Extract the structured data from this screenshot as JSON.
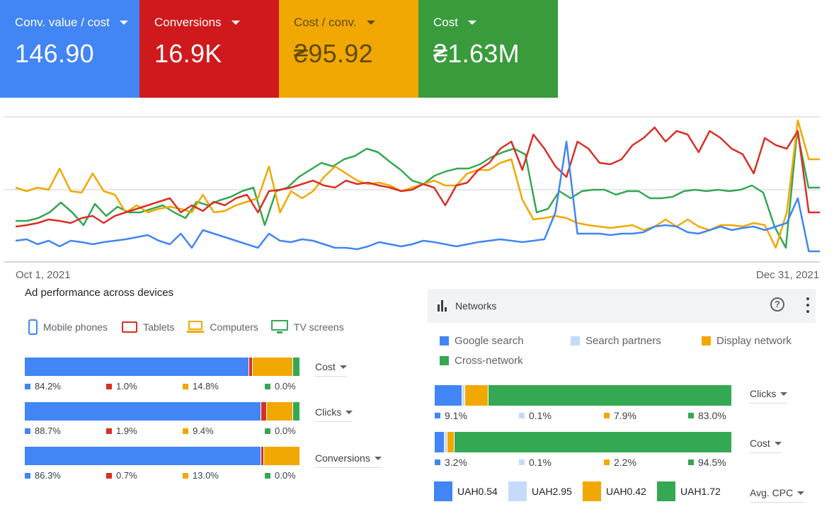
{
  "kpis": [
    {
      "label": "Conv. value / cost",
      "value": "146.90"
    },
    {
      "label": "Conversions",
      "value": "16.9K"
    },
    {
      "label": "Cost / conv.",
      "value": "₴95.92"
    },
    {
      "label": "Cost",
      "value": "₴1.63M"
    }
  ],
  "colors": {
    "blue": "#4285f4",
    "red": "#d93025",
    "yellow": "#f2a802",
    "green": "#34a853",
    "light_blue": "#c6dafc"
  },
  "chart_data": {
    "type": "line",
    "x_start": "Oct 1, 2021",
    "x_end": "Dec 31, 2021",
    "grid": true,
    "series": [
      {
        "key": "blue",
        "values": [
          340,
          338,
          345,
          340,
          348,
          340,
          342,
          345,
          342,
          340,
          338,
          335,
          332,
          340,
          345,
          330,
          350,
          325,
          330,
          335,
          340,
          345,
          350,
          330,
          340,
          342,
          338,
          340,
          345,
          350,
          350,
          352,
          348,
          342,
          345,
          348,
          345,
          340,
          342,
          345,
          348,
          345,
          342,
          340,
          338,
          340,
          342,
          340,
          338,
          300,
          200,
          330,
          330,
          330,
          332,
          330,
          330,
          328,
          320,
          318,
          320,
          328,
          330,
          325,
          320,
          325,
          322,
          320,
          325,
          320,
          315,
          280,
          355,
          355
        ]
      },
      {
        "key": "red",
        "values": [
          320,
          318,
          315,
          310,
          312,
          315,
          308,
          305,
          315,
          305,
          300,
          295,
          290,
          285,
          280,
          300,
          290,
          298,
          285,
          290,
          280,
          275,
          300,
          270,
          268,
          265,
          260,
          255,
          262,
          265,
          255,
          260,
          258,
          262,
          265,
          270,
          268,
          260,
          265,
          290,
          262,
          258,
          240,
          230,
          210,
          200,
          240,
          190,
          210,
          235,
          250,
          200,
          210,
          230,
          232,
          225,
          205,
          195,
          180,
          200,
          185,
          190,
          215,
          185,
          195,
          210,
          218,
          245,
          195,
          205,
          210,
          185,
          300,
          300
        ]
      },
      {
        "key": "yellow",
        "values": [
          265,
          270,
          265,
          268,
          238,
          270,
          272,
          245,
          270,
          275,
          300,
          290,
          300,
          295,
          292,
          295,
          300,
          275,
          300,
          298,
          290,
          285,
          280,
          235,
          300,
          270,
          280,
          270,
          250,
          235,
          245,
          255,
          260,
          258,
          262,
          270,
          265,
          260,
          255,
          262,
          262,
          245,
          240,
          240,
          230,
          225,
          282,
          310,
          308,
          305,
          308,
          315,
          318,
          320,
          322,
          320,
          318,
          325,
          320,
          310,
          320,
          310,
          320,
          325,
          318,
          318,
          320,
          315,
          318,
          350,
          300,
          170,
          225,
          225
        ]
      },
      {
        "key": "green",
        "values": [
          312,
          312,
          308,
          300,
          286,
          300,
          318,
          288,
          305,
          292,
          300,
          300,
          295,
          290,
          300,
          308,
          285,
          290,
          283,
          278,
          270,
          265,
          318,
          270,
          265,
          250,
          240,
          230,
          235,
          225,
          220,
          210,
          215,
          228,
          240,
          255,
          260,
          248,
          242,
          238,
          238,
          232,
          222,
          215,
          210,
          218,
          300,
          295,
          270,
          280,
          270,
          268,
          268,
          275,
          270,
          270,
          280,
          280,
          278,
          270,
          268,
          270,
          268,
          270,
          268,
          262,
          272,
          320,
          350,
          185,
          265,
          265
        ]
      }
    ]
  },
  "devices": {
    "title": "Ad performance across devices",
    "legend": [
      "Mobile phones",
      "Tablets",
      "Computers",
      "TV screens"
    ],
    "rows": [
      {
        "metric": "Cost",
        "values": [
          84.2,
          1.0,
          14.8,
          0.0
        ],
        "labels": [
          "84.2%",
          "1.0%",
          "14.8%",
          "0.0%"
        ],
        "bar_fractions": [
          0.842,
          0.01,
          0.148,
          0.025
        ]
      },
      {
        "metric": "Clicks",
        "values": [
          88.7,
          1.9,
          9.4,
          0.0
        ],
        "labels": [
          "88.7%",
          "1.9%",
          "9.4%",
          "0.0%"
        ],
        "bar_fractions": [
          0.887,
          0.019,
          0.094,
          0.025
        ]
      },
      {
        "metric": "Conversions",
        "values": [
          86.3,
          0.7,
          13.0,
          0.0
        ],
        "labels": [
          "86.3%",
          "0.7%",
          "13.0%",
          "0.0%"
        ],
        "bar_fractions": [
          0.863,
          0.007,
          0.13,
          0.0
        ]
      }
    ]
  },
  "networks": {
    "title": "Networks",
    "legend": [
      "Google search",
      "Search partners",
      "Display network",
      "Cross-network"
    ],
    "rows": [
      {
        "metric": "Clicks",
        "values": [
          9.1,
          0.1,
          7.9,
          83.0
        ],
        "labels": [
          "9.1%",
          "0.1%",
          "7.9%",
          "83.0%"
        ]
      },
      {
        "metric": "Cost",
        "values": [
          3.2,
          0.1,
          2.2,
          94.5
        ],
        "labels": [
          "3.2%",
          "0.1%",
          "2.2%",
          "94.5%"
        ]
      }
    ],
    "avg_cpc": {
      "metric": "Avg. CPC",
      "values": [
        "UAH0.54",
        "UAH2.95",
        "UAH0.42",
        "UAH1.72"
      ]
    }
  }
}
